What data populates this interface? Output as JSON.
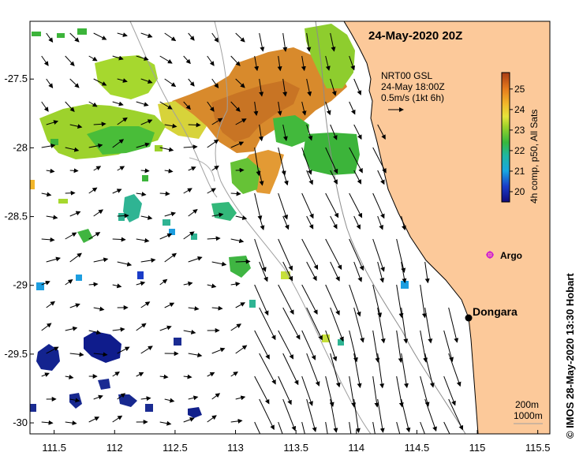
{
  "map": {
    "date_title": "24-May-2020 20Z",
    "product": {
      "line1": "NRT00 GSL",
      "line2": "24-May 18:00Z",
      "line3": "0.5m/s (1kt 6h)"
    },
    "colorbar": {
      "label": "4h comp, p50, All Sats",
      "ticks": [
        "25",
        "24",
        "23",
        "22",
        "21",
        "20"
      ],
      "min": 19.5,
      "max": 25.8
    },
    "places": [
      {
        "name": "Dongara",
        "type": "town",
        "lon": 114.93,
        "lat": -29.25
      },
      {
        "name": "Argo",
        "type": "float",
        "lon": 115.06,
        "lat": -28.81
      }
    ],
    "isobath_legend": {
      "shallow": "200m",
      "deep": "1000m"
    },
    "copyright": "© IMOS 28-May-2020 13:30 Hobart",
    "x_ticks": [
      "111.5",
      "112",
      "112.5",
      "113",
      "113.5",
      "114",
      "114.5",
      "115",
      "115.5"
    ],
    "y_ticks": [
      "-27.5",
      "-28",
      "-28.5",
      "-29",
      "-29.5",
      "-30"
    ],
    "extent": {
      "lon_min": 111.3,
      "lon_max": 115.6,
      "lat_max": -27.08,
      "lat_min": -30.08
    },
    "colors": {
      "land": "#fcc99a",
      "frame": "#000000"
    }
  }
}
